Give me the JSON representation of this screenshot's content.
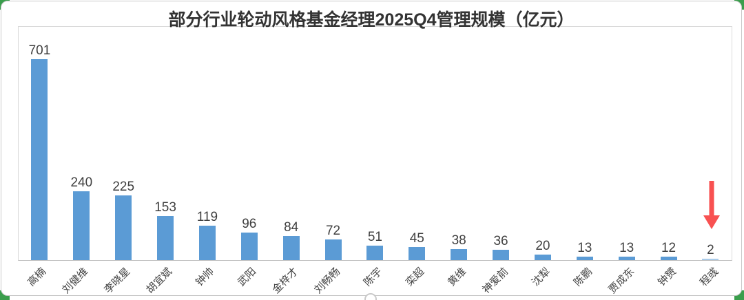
{
  "page": {
    "corner_background_color": "#3a9e4c"
  },
  "card": {
    "background": "#ffffff",
    "border_color": "#c8c8c8"
  },
  "chart_data": {
    "type": "bar",
    "title": "部分行业轮动风格基金经理2025Q4管理规模（亿元）",
    "title_color": "#333333",
    "categories": [
      "高楠",
      "刘健维",
      "李晓星",
      "胡宜斌",
      "钟帅",
      "武阳",
      "金梓才",
      "刘畅畅",
      "陈宇",
      "栾超",
      "黄维",
      "神爱前",
      "沈犁",
      "陈鹏",
      "贾成东",
      "钟赟",
      "程彧"
    ],
    "values": [
      701,
      240,
      225,
      153,
      119,
      96,
      84,
      72,
      51,
      45,
      38,
      36,
      20,
      13,
      13,
      12,
      2
    ],
    "unit": "亿元",
    "xlabel": "",
    "ylabel": "",
    "ylim": [
      0,
      750
    ],
    "grid": false,
    "legend": false,
    "data_labels": true,
    "bar_color": "#5B9BD5",
    "last_bar_color": "#A9CBE9",
    "value_label_color": "#3f3f3f",
    "axis_label_color": "#444444",
    "axis_label_rotation_deg": -45
  },
  "annotations": {
    "arrow": {
      "type": "down-arrow",
      "color": "#F85151",
      "target_category": "程彧",
      "target_value": 2
    }
  }
}
